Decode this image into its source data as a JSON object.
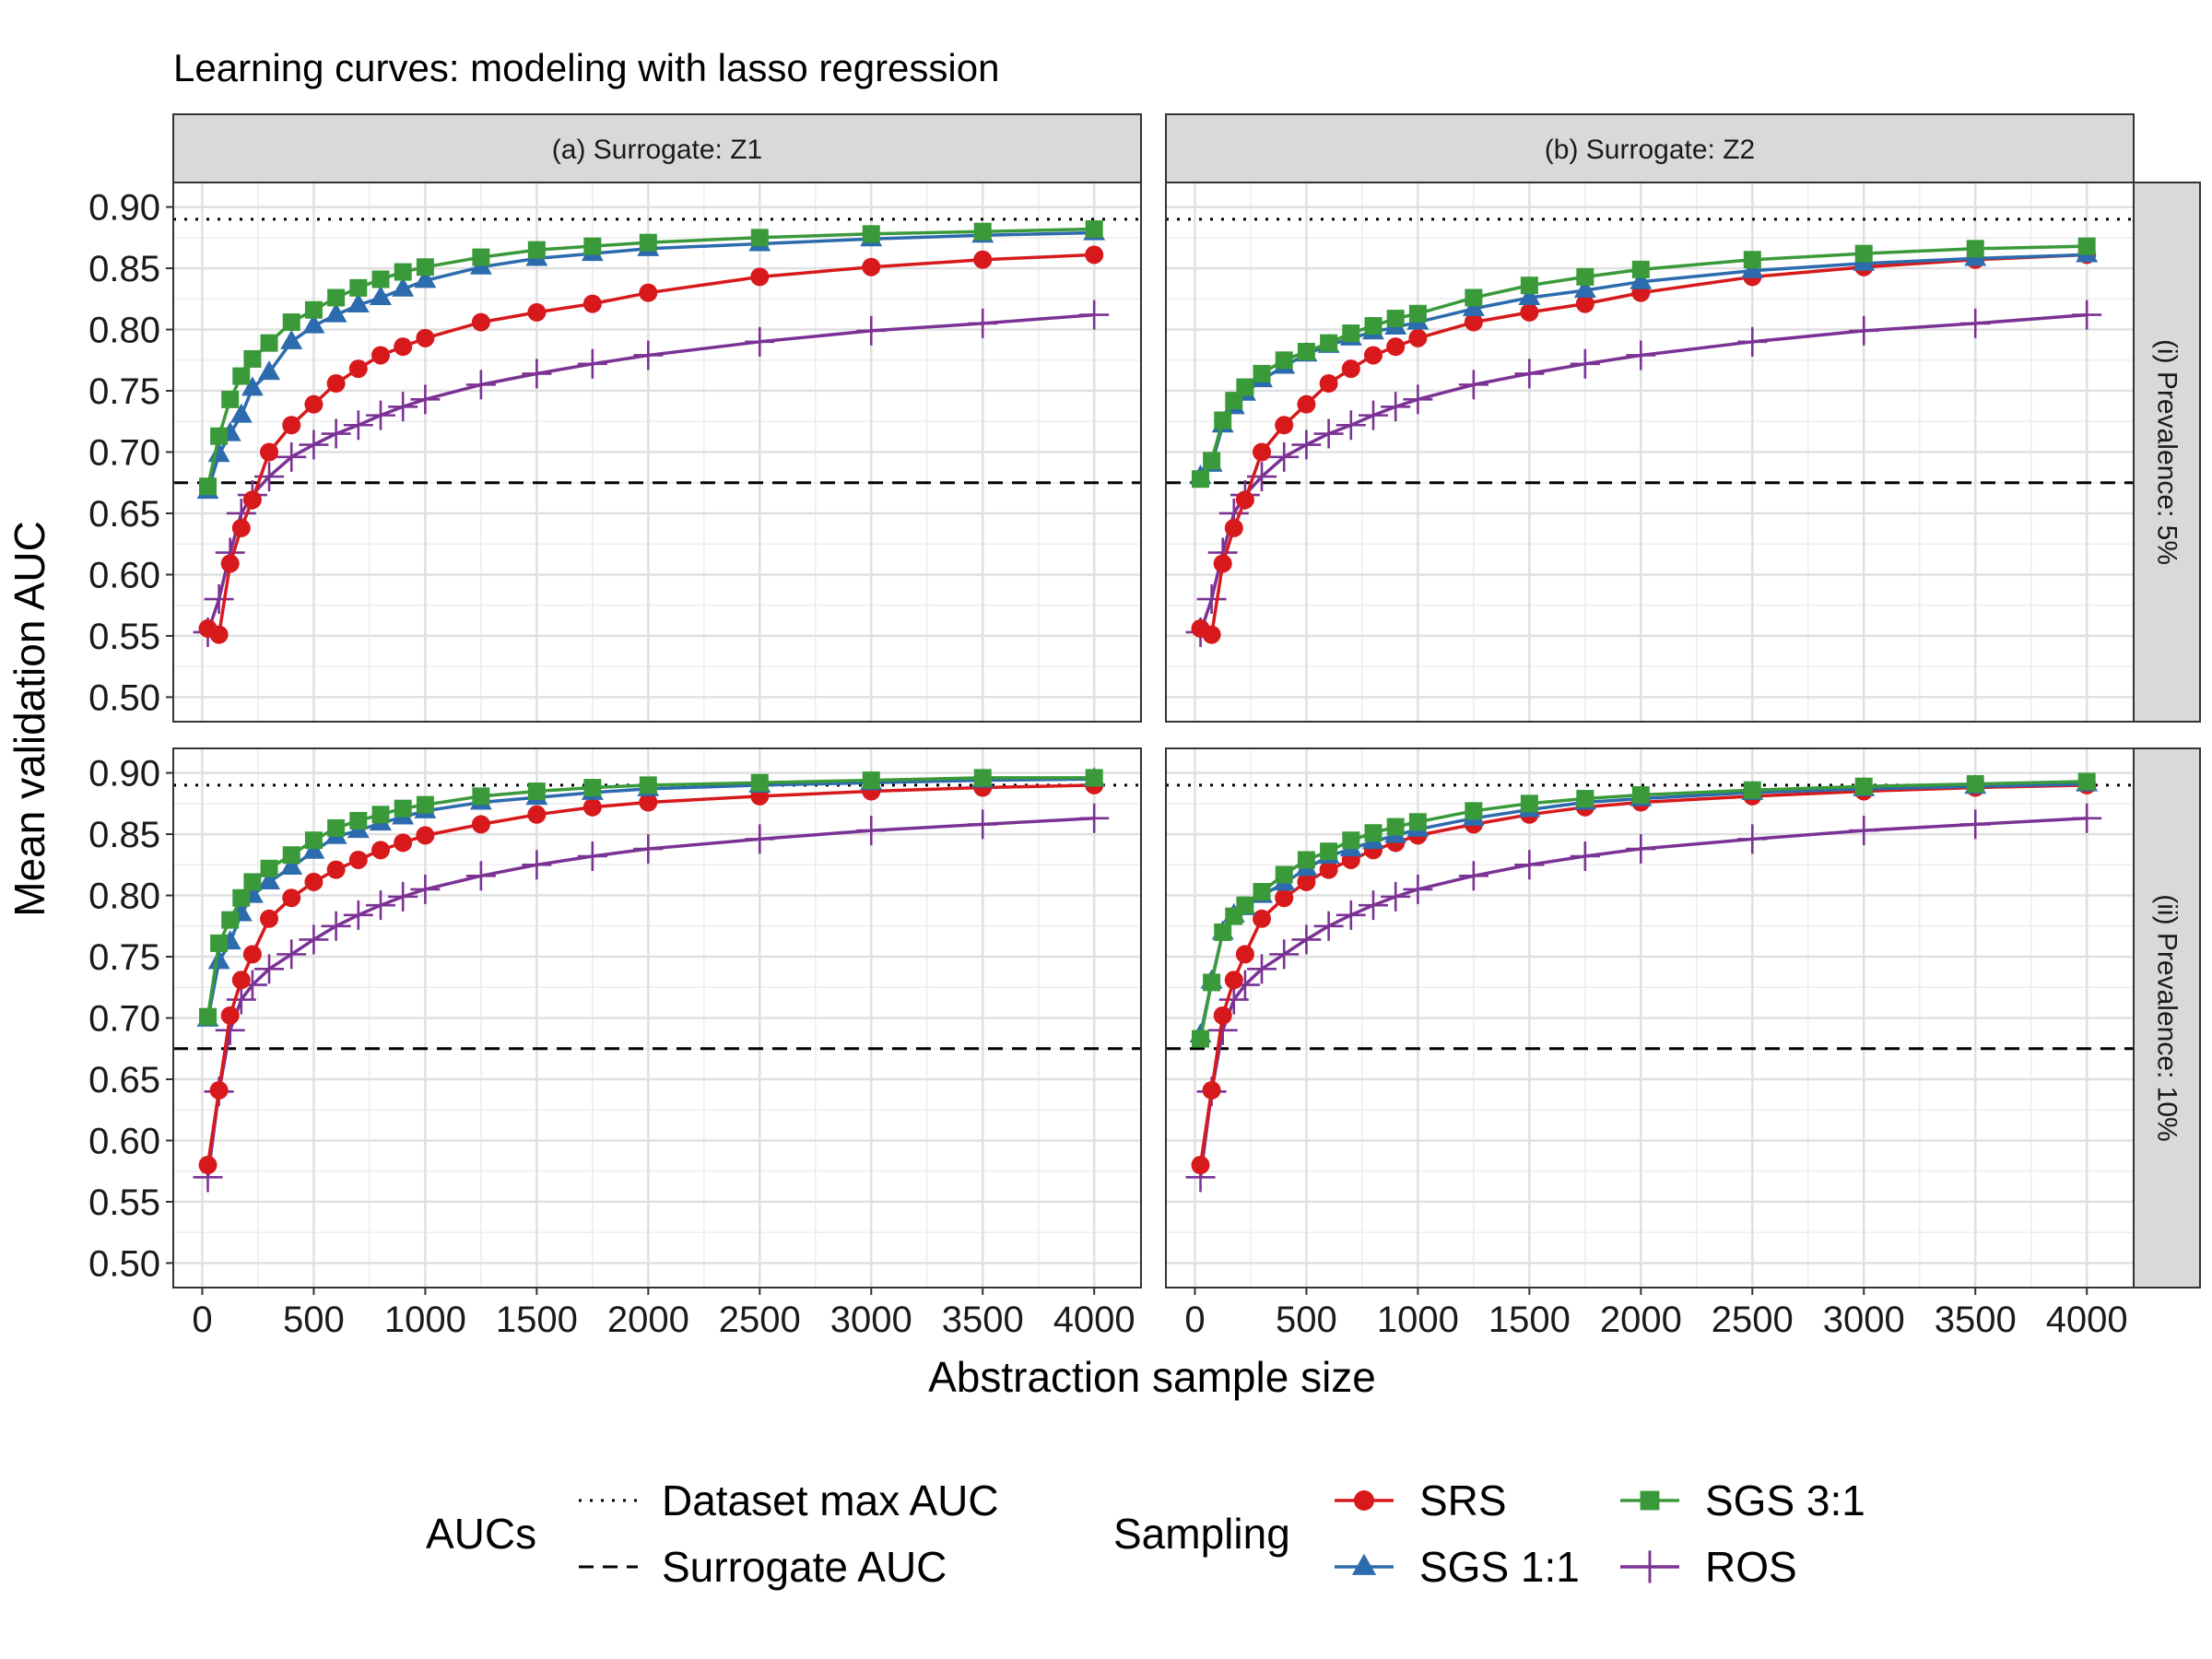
{
  "chart_data": {
    "type": "line",
    "title": "Learning curves: modeling with lasso regression",
    "xlabel": "Abstraction sample size",
    "ylabel": "Mean validation AUC",
    "xlim": [
      -130,
      4210
    ],
    "ylim": [
      0.48,
      0.92
    ],
    "x_ticks": [
      0,
      500,
      1000,
      1500,
      2000,
      2500,
      3000,
      3500,
      4000
    ],
    "x_tick_labels": [
      "0",
      "500",
      "1000",
      "1500",
      "2000",
      "2500",
      "3000",
      "3500",
      "4000"
    ],
    "y_ticks": [
      0.5,
      0.55,
      0.6,
      0.65,
      0.7,
      0.75,
      0.8,
      0.85,
      0.9
    ],
    "y_tick_labels": [
      "0.50",
      "0.55",
      "0.60",
      "0.65",
      "0.70",
      "0.75",
      "0.80",
      "0.85",
      "0.90"
    ],
    "column_strips": [
      "(a) Surrogate: Z1",
      "(b) Surrogate: Z2"
    ],
    "row_strips": [
      "(i) Prevalence: 5%",
      "(ii) Prevalence: 10%"
    ],
    "reference_lines": [
      {
        "name": "Dataset max AUC",
        "style": "dotted"
      },
      {
        "name": "Surrogate AUC",
        "style": "dashed"
      }
    ],
    "legend": {
      "auc_title": "AUCs",
      "auc_items": [
        "Dataset max AUC",
        "Surrogate AUC"
      ],
      "sampling_title": "Sampling",
      "sampling_items": [
        "SRS",
        "SGS 1:1",
        "SGS 3:1",
        "ROS"
      ]
    },
    "series_styles": [
      {
        "name": "SRS",
        "color": "#d7191c",
        "marker": "circle"
      },
      {
        "name": "SGS 1:1",
        "color": "#2c6bad",
        "marker": "triangle"
      },
      {
        "name": "SGS 3:1",
        "color": "#3a9a3a",
        "marker": "square"
      },
      {
        "name": "ROS",
        "color": "#7b3294",
        "marker": "plus"
      }
    ],
    "x": [
      25,
      75,
      125,
      175,
      225,
      300,
      400,
      500,
      600,
      700,
      800,
      900,
      1000,
      1250,
      1500,
      1750,
      2000,
      2500,
      3000,
      3500,
      4000
    ],
    "panels": [
      {
        "row": 0,
        "col": 0,
        "max_auc": 0.89,
        "surrogate_auc": 0.675,
        "series": [
          {
            "name": "SRS",
            "values": [
              0.556,
              0.551,
              0.609,
              0.638,
              0.661,
              0.7,
              0.722,
              0.739,
              0.756,
              0.768,
              0.779,
              0.786,
              0.793,
              0.806,
              0.814,
              0.821,
              0.83,
              0.843,
              0.851,
              0.857,
              0.861
            ]
          },
          {
            "name": "SGS 1:1",
            "values": [
              0.668,
              0.698,
              0.715,
              0.73,
              0.752,
              0.765,
              0.79,
              0.803,
              0.812,
              0.82,
              0.826,
              0.833,
              0.84,
              0.851,
              0.858,
              0.862,
              0.866,
              0.87,
              0.874,
              0.877,
              0.879
            ]
          },
          {
            "name": "SGS 3:1",
            "values": [
              0.672,
              0.713,
              0.743,
              0.762,
              0.776,
              0.789,
              0.806,
              0.816,
              0.826,
              0.834,
              0.841,
              0.847,
              0.851,
              0.859,
              0.865,
              0.868,
              0.871,
              0.875,
              0.878,
              0.88,
              0.882
            ]
          },
          {
            "name": "ROS",
            "values": [
              0.553,
              0.58,
              0.618,
              0.65,
              0.665,
              0.68,
              0.696,
              0.706,
              0.715,
              0.722,
              0.73,
              0.737,
              0.743,
              0.755,
              0.764,
              0.772,
              0.779,
              0.79,
              0.799,
              0.805,
              0.812
            ]
          }
        ]
      },
      {
        "row": 0,
        "col": 1,
        "max_auc": 0.89,
        "surrogate_auc": 0.675,
        "series": [
          {
            "name": "SRS",
            "values": [
              0.556,
              0.551,
              0.609,
              0.638,
              0.661,
              0.7,
              0.722,
              0.739,
              0.756,
              0.768,
              0.779,
              0.786,
              0.793,
              0.806,
              0.814,
              0.821,
              0.83,
              0.843,
              0.851,
              0.857,
              0.861
            ]
          },
          {
            "name": "SGS 1:1",
            "values": [
              0.68,
              0.69,
              0.722,
              0.737,
              0.748,
              0.759,
              0.77,
              0.78,
              0.787,
              0.793,
              0.798,
              0.802,
              0.806,
              0.817,
              0.826,
              0.832,
              0.839,
              0.848,
              0.854,
              0.858,
              0.861
            ]
          },
          {
            "name": "SGS 3:1",
            "values": [
              0.678,
              0.693,
              0.726,
              0.742,
              0.753,
              0.764,
              0.775,
              0.782,
              0.789,
              0.797,
              0.803,
              0.809,
              0.813,
              0.826,
              0.836,
              0.843,
              0.849,
              0.857,
              0.862,
              0.866,
              0.868
            ]
          },
          {
            "name": "ROS",
            "values": [
              0.553,
              0.58,
              0.618,
              0.65,
              0.665,
              0.68,
              0.696,
              0.706,
              0.715,
              0.722,
              0.73,
              0.737,
              0.743,
              0.755,
              0.764,
              0.772,
              0.779,
              0.79,
              0.799,
              0.805,
              0.812
            ]
          }
        ]
      },
      {
        "row": 1,
        "col": 0,
        "max_auc": 0.89,
        "surrogate_auc": 0.675,
        "series": [
          {
            "name": "SRS",
            "values": [
              0.58,
              0.641,
              0.702,
              0.731,
              0.752,
              0.781,
              0.798,
              0.811,
              0.821,
              0.829,
              0.837,
              0.843,
              0.849,
              0.858,
              0.866,
              0.872,
              0.876,
              0.881,
              0.885,
              0.888,
              0.89
            ]
          },
          {
            "name": "SGS 1:1",
            "values": [
              0.699,
              0.746,
              0.762,
              0.785,
              0.8,
              0.811,
              0.823,
              0.836,
              0.848,
              0.853,
              0.859,
              0.864,
              0.869,
              0.876,
              0.88,
              0.884,
              0.887,
              0.89,
              0.892,
              0.894,
              0.895
            ]
          },
          {
            "name": "SGS 3:1",
            "values": [
              0.701,
              0.761,
              0.78,
              0.798,
              0.811,
              0.822,
              0.833,
              0.845,
              0.855,
              0.861,
              0.866,
              0.871,
              0.874,
              0.881,
              0.885,
              0.888,
              0.89,
              0.892,
              0.894,
              0.896,
              0.896
            ]
          },
          {
            "name": "ROS",
            "values": [
              0.57,
              0.64,
              0.69,
              0.715,
              0.727,
              0.74,
              0.752,
              0.764,
              0.775,
              0.784,
              0.792,
              0.799,
              0.805,
              0.816,
              0.825,
              0.832,
              0.838,
              0.846,
              0.853,
              0.858,
              0.863
            ]
          }
        ]
      },
      {
        "row": 1,
        "col": 1,
        "max_auc": 0.89,
        "surrogate_auc": 0.675,
        "series": [
          {
            "name": "SRS",
            "values": [
              0.58,
              0.641,
              0.702,
              0.731,
              0.752,
              0.781,
              0.798,
              0.811,
              0.821,
              0.829,
              0.837,
              0.843,
              0.849,
              0.858,
              0.866,
              0.872,
              0.876,
              0.881,
              0.885,
              0.888,
              0.89
            ]
          },
          {
            "name": "SGS 1:1",
            "values": [
              0.686,
              0.73,
              0.77,
              0.784,
              0.79,
              0.8,
              0.81,
              0.822,
              0.832,
              0.838,
              0.844,
              0.849,
              0.854,
              0.863,
              0.87,
              0.876,
              0.879,
              0.884,
              0.887,
              0.889,
              0.891
            ]
          },
          {
            "name": "SGS 3:1",
            "values": [
              0.683,
              0.729,
              0.77,
              0.783,
              0.792,
              0.803,
              0.817,
              0.829,
              0.836,
              0.845,
              0.851,
              0.856,
              0.86,
              0.869,
              0.875,
              0.879,
              0.882,
              0.886,
              0.889,
              0.891,
              0.893
            ]
          },
          {
            "name": "ROS",
            "values": [
              0.57,
              0.64,
              0.69,
              0.715,
              0.727,
              0.74,
              0.752,
              0.764,
              0.775,
              0.784,
              0.792,
              0.799,
              0.805,
              0.816,
              0.825,
              0.832,
              0.838,
              0.846,
              0.853,
              0.858,
              0.863
            ]
          }
        ]
      }
    ]
  }
}
